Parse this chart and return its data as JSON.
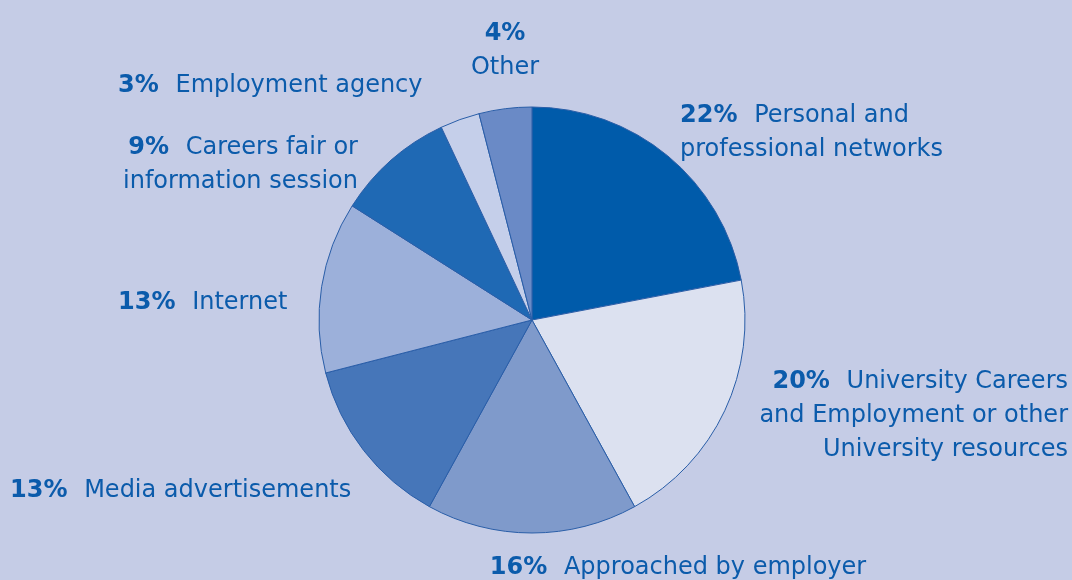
{
  "chart_data": {
    "type": "pie",
    "categories": [
      "Personal and professional networks",
      "University Careers and Employment or other University resources",
      "Approached by employer",
      "Media advertisements",
      "Internet",
      "Careers fair or information session",
      "Employment agency",
      "Other"
    ],
    "values": [
      22,
      20,
      16,
      13,
      13,
      9,
      3,
      4
    ],
    "value_labels": [
      "22%",
      "20%",
      "16%",
      "13%",
      "13%",
      "9%",
      "3%",
      "4%"
    ],
    "colors": [
      "#005baa",
      "#dce1f0",
      "#7f9acb",
      "#4676b9",
      "#9cb0da",
      "#1f69b4",
      "#c5cfea",
      "#6a8ac6"
    ],
    "legend": false
  }
}
